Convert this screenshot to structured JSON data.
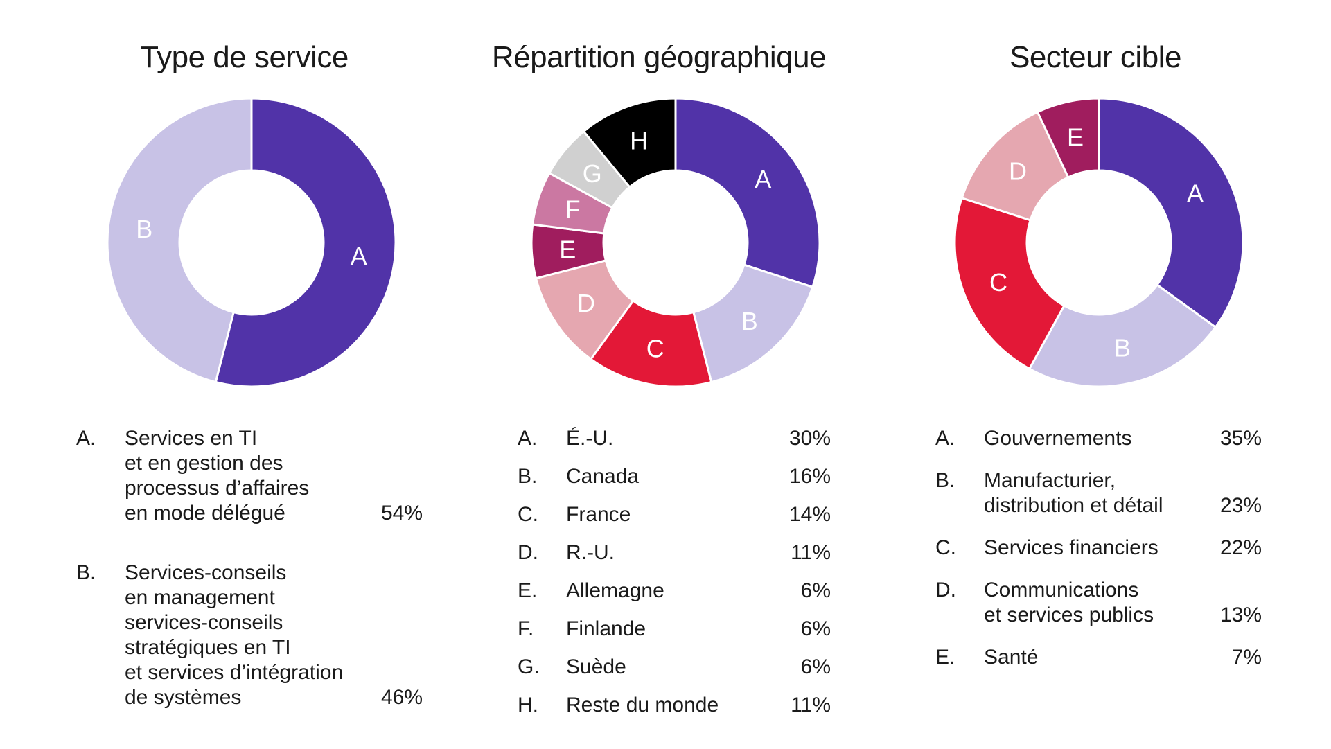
{
  "chart_data": [
    {
      "type": "pie",
      "title": "Type de service",
      "categories": [
        "A",
        "B"
      ],
      "values": [
        54,
        46
      ],
      "colors": [
        "#5133a8",
        "#c8c2e6"
      ],
      "label_colors": [
        "#ffffff",
        "#ffffff"
      ],
      "legend": [
        {
          "letter": "A.",
          "name": "Services en TI\net en gestion des\nprocessus d’affaires\nen mode délégué",
          "pct": "54%"
        },
        {
          "letter": "B.",
          "name": "Services-conseils\nen management\nservices-conseils\nstratégiques en TI\net services d’intégration\nde systèmes",
          "pct": "46%"
        }
      ]
    },
    {
      "type": "pie",
      "title": "Répartition géographique",
      "categories": [
        "A",
        "B",
        "C",
        "D",
        "E",
        "F",
        "G",
        "H"
      ],
      "values": [
        30,
        16,
        14,
        11,
        6,
        6,
        6,
        11
      ],
      "colors": [
        "#5133a8",
        "#c8c2e6",
        "#e31837",
        "#e5a7b0",
        "#a01d5e",
        "#cb78a2",
        "#d0d0d0",
        "#000000"
      ],
      "label_colors": [
        "#ffffff",
        "#ffffff",
        "#ffffff",
        "#ffffff",
        "#ffffff",
        "#ffffff",
        "#ffffff",
        "#ffffff"
      ],
      "legend": [
        {
          "letter": "A.",
          "name": "É.-U.",
          "pct": "30%"
        },
        {
          "letter": "B.",
          "name": "Canada",
          "pct": "16%"
        },
        {
          "letter": "C.",
          "name": "France",
          "pct": "14%"
        },
        {
          "letter": "D.",
          "name": "R.-U.",
          "pct": "11%"
        },
        {
          "letter": "E.",
          "name": "Allemagne",
          "pct": "6%"
        },
        {
          "letter": "F.",
          "name": "Finlande",
          "pct": "6%"
        },
        {
          "letter": "G.",
          "name": "Suède",
          "pct": "6%"
        },
        {
          "letter": "H.",
          "name": "Reste du monde",
          "pct": "11%"
        }
      ]
    },
    {
      "type": "pie",
      "title": "Secteur cible",
      "categories": [
        "A",
        "B",
        "C",
        "D",
        "E"
      ],
      "values": [
        35,
        23,
        22,
        13,
        7
      ],
      "colors": [
        "#5133a8",
        "#c8c2e6",
        "#e31837",
        "#e5a7b0",
        "#a01d5e"
      ],
      "label_colors": [
        "#ffffff",
        "#ffffff",
        "#ffffff",
        "#ffffff",
        "#ffffff"
      ],
      "legend": [
        {
          "letter": "A.",
          "name": "Gouvernements",
          "pct": "35%"
        },
        {
          "letter": "B.",
          "name": "Manufacturier,\ndistribution et détail",
          "pct": "23%"
        },
        {
          "letter": "C.",
          "name": "Services financiers",
          "pct": "22%"
        },
        {
          "letter": "D.",
          "name": "Communications\net services publics",
          "pct": "13%"
        },
        {
          "letter": "E.",
          "name": "Santé",
          "pct": "7%"
        }
      ]
    }
  ]
}
